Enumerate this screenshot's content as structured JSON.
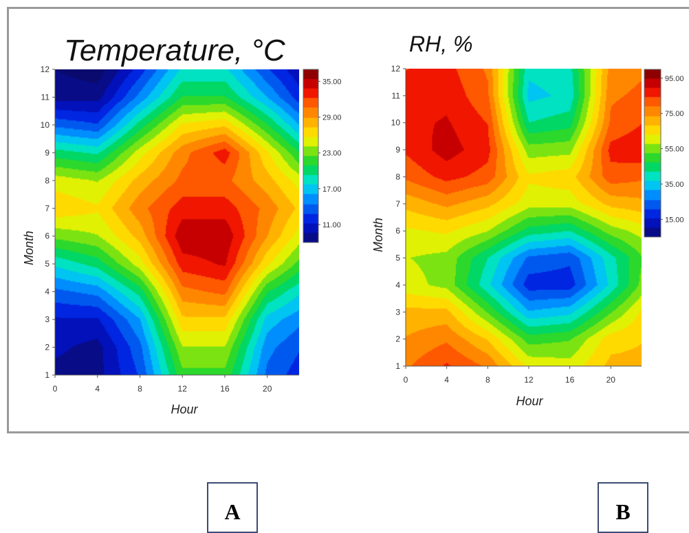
{
  "panel_labels": {
    "a": "A",
    "b": "B"
  },
  "chart_data": [
    {
      "type": "heatmap",
      "title": "Temperature, °C",
      "title_text": "Temperature, ",
      "title_unit": "°C",
      "xlabel": "Hour",
      "ylabel": "Month",
      "xlim": [
        0,
        23
      ],
      "ylim": [
        1,
        12
      ],
      "x_ticks": [
        0,
        4,
        8,
        12,
        16,
        20
      ],
      "y_ticks": [
        1,
        2,
        3,
        4,
        5,
        6,
        7,
        8,
        9,
        10,
        11,
        12
      ],
      "colorbar_range": [
        8,
        37
      ],
      "colorbar_ticks": [
        "35.00",
        "29.00",
        "23.00",
        "17.00",
        "11.00"
      ],
      "colorbar_tick_values": [
        35,
        29,
        23,
        17,
        11
      ],
      "grid": {
        "x": [
          0,
          4,
          8,
          12,
          16,
          20,
          23
        ],
        "y": [
          1,
          2,
          3,
          4,
          5,
          6,
          7,
          8,
          9,
          10,
          11,
          12
        ]
      },
      "z": [
        [
          9,
          10,
          11,
          14,
          18,
          23,
          27,
          25,
          20,
          14,
          9,
          8
        ],
        [
          9,
          9,
          11,
          15,
          20,
          24,
          26,
          24,
          19,
          13,
          9,
          7
        ],
        [
          13,
          14,
          16,
          20,
          25,
          28,
          30,
          28,
          25,
          20,
          15,
          12
        ],
        [
          22,
          24,
          27,
          30,
          33,
          35,
          33,
          31,
          30,
          26,
          21,
          18
        ],
        [
          22,
          24,
          27,
          31,
          34,
          35,
          33,
          31,
          33,
          27,
          21,
          18
        ],
        [
          14,
          15,
          17,
          21,
          26,
          29,
          30,
          28,
          26,
          21,
          16,
          13
        ],
        [
          12,
          13,
          15,
          18,
          22,
          25,
          27,
          25,
          21,
          16,
          12,
          10
        ]
      ]
    },
    {
      "type": "heatmap",
      "title": "RH, %",
      "title_text": "RH, %",
      "title_unit": "",
      "xlabel": "Hour",
      "ylabel": "Month",
      "xlim": [
        0,
        23
      ],
      "ylim": [
        1,
        12
      ],
      "x_ticks": [
        0,
        4,
        8,
        12,
        16,
        20
      ],
      "y_ticks": [
        1,
        2,
        3,
        4,
        5,
        6,
        7,
        8,
        9,
        10,
        11,
        12
      ],
      "colorbar_range": [
        5,
        100
      ],
      "colorbar_ticks": [
        "95.00",
        "75.00",
        "55.00",
        "35.00",
        "15.00"
      ],
      "colorbar_tick_values": [
        95,
        75,
        55,
        35,
        15
      ],
      "grid": {
        "x": [
          0,
          4,
          8,
          12,
          16,
          20,
          23
        ],
        "y": [
          1,
          2,
          3,
          4,
          5,
          6,
          7,
          8,
          9,
          10,
          11,
          12
        ]
      },
      "z": [
        [
          78,
          74,
          70,
          60,
          58,
          62,
          70,
          80,
          85,
          88,
          86,
          84
        ],
        [
          85,
          78,
          70,
          56,
          56,
          64,
          75,
          86,
          92,
          90,
          88,
          86
        ],
        [
          78,
          68,
          52,
          38,
          42,
          58,
          70,
          82,
          86,
          84,
          80,
          78
        ],
        [
          62,
          50,
          32,
          18,
          25,
          45,
          60,
          64,
          55,
          42,
          35,
          38
        ],
        [
          60,
          52,
          35,
          18,
          22,
          42,
          60,
          66,
          56,
          45,
          38,
          40
        ],
        [
          70,
          66,
          52,
          38,
          40,
          55,
          70,
          82,
          86,
          80,
          78,
          76
        ],
        [
          70,
          68,
          64,
          54,
          52,
          60,
          72,
          80,
          88,
          84,
          80,
          78
        ]
      ]
    }
  ]
}
